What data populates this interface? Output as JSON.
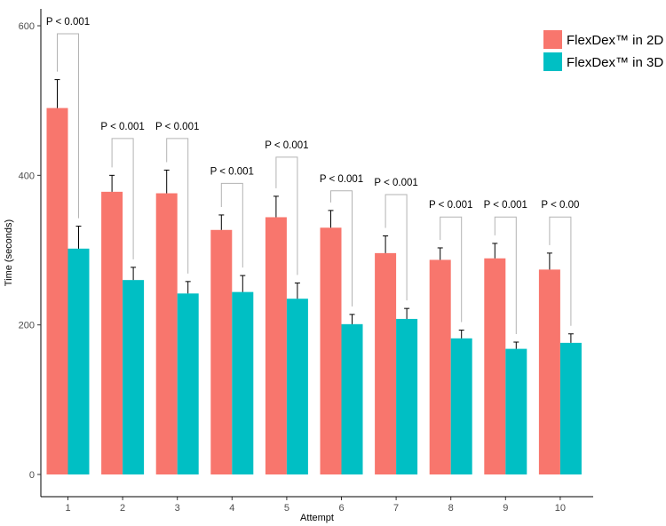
{
  "chart_data": {
    "type": "bar",
    "title": "",
    "xlabel": "Attempt",
    "ylabel": "Time (seconds)",
    "ylim": [
      0,
      600
    ],
    "yticks": [
      0,
      200,
      400,
      600
    ],
    "grid": false,
    "legend_position": "top-right",
    "categories": [
      "1",
      "2",
      "3",
      "4",
      "5",
      "6",
      "7",
      "8",
      "9",
      "10"
    ],
    "series": [
      {
        "name": "FlexDex™ in 2D",
        "color": "#F8766D",
        "values": [
          490,
          378,
          376,
          327,
          344,
          330,
          296,
          287,
          289,
          274
        ],
        "error_upper": [
          528,
          400,
          407,
          347,
          372,
          353,
          319,
          303,
          309,
          296
        ]
      },
      {
        "name": "FlexDex™ in 3D",
        "color": "#00BFC4",
        "values": [
          302,
          260,
          242,
          244,
          235,
          201,
          208,
          182,
          168,
          176
        ],
        "error_upper": [
          332,
          277,
          258,
          266,
          256,
          214,
          222,
          193,
          177,
          188
        ]
      }
    ],
    "annotations": [
      "P < 0.001",
      "P < 0.001",
      "P < 0.001",
      "P < 0.001",
      "P < 0.001",
      "P < 0.001",
      "P < 0.001",
      "P < 0.001",
      "P < 0.001",
      "P < 0.00"
    ],
    "annotation_levels": [
      600,
      460,
      460,
      400,
      435,
      390,
      385,
      355,
      355,
      355
    ]
  }
}
